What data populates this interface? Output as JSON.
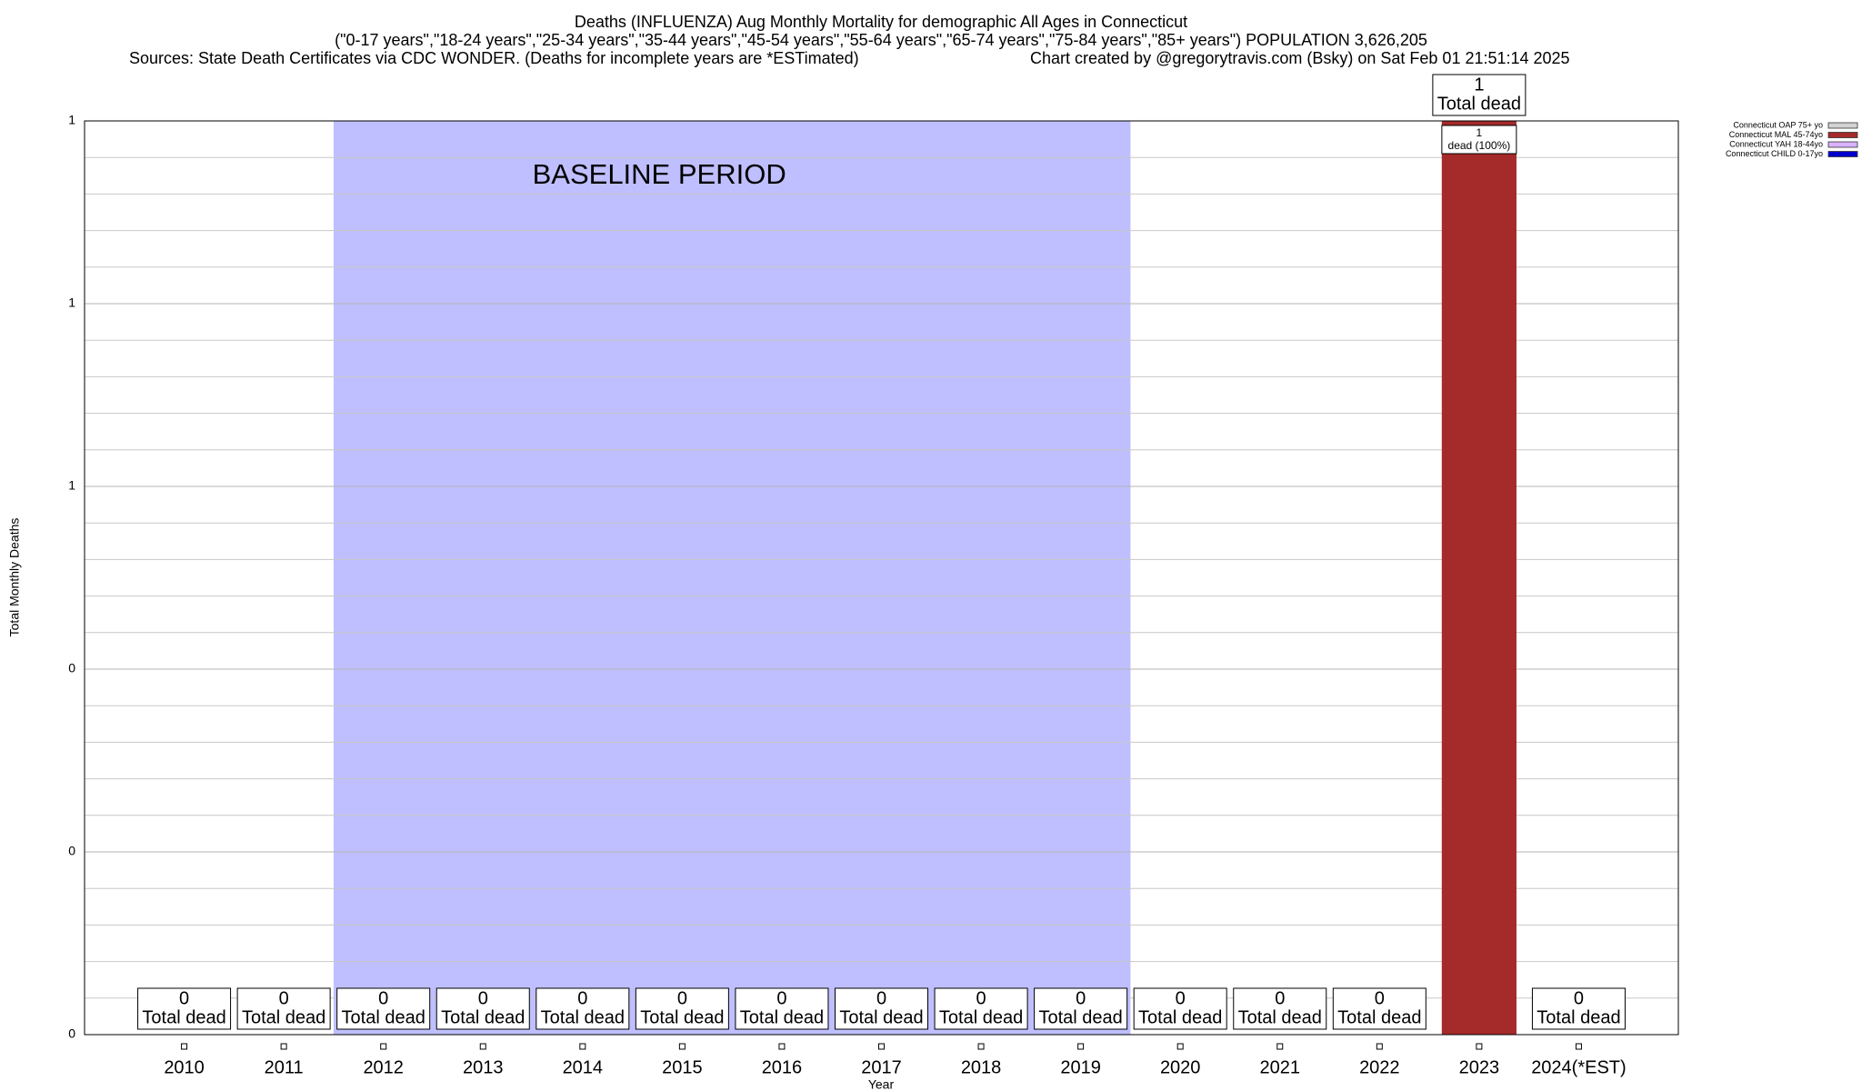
{
  "chart_data": {
    "type": "stacked_bar",
    "title": "Deaths (INFLUENZA) Aug Monthly Mortality for demographic All Ages in Connecticut",
    "subtitle": "(\"0-17 years\",\"18-24 years\",\"25-34 years\",\"35-44 years\",\"45-54 years\",\"55-64 years\",\"65-74 years\",\"75-84 years\",\"85+ years\") POPULATION 3,626,205",
    "sources": "Sources: State Death Certificates via CDC WONDER. (Deaths for incomplete years are *ESTimated)",
    "credit": "Chart created by @gregorytravis.com (Bsky) on Sat Feb 01 21:51:14 2025",
    "x_label": "Year",
    "y_label": "Total Monthly Deaths",
    "categories": [
      "2010",
      "2011",
      "2012",
      "2013",
      "2014",
      "2015",
      "2016",
      "2017",
      "2018",
      "2019",
      "2020",
      "2021",
      "2022",
      "2023",
      "2024(*EST)"
    ],
    "series": [
      {
        "name": "Connecticut OAP 75+ yo",
        "color": "#d3d3d3",
        "values": [
          0,
          0,
          0,
          0,
          0,
          0,
          0,
          0,
          0,
          0,
          0,
          0,
          0,
          0,
          0
        ]
      },
      {
        "name": "Connecticut MAL 45-74yo",
        "color": "#a52a2a",
        "values": [
          0,
          0,
          0,
          0,
          0,
          0,
          0,
          0,
          0,
          0,
          0,
          0,
          0,
          1,
          0
        ],
        "value_labels": [
          null,
          null,
          null,
          null,
          null,
          null,
          null,
          null,
          null,
          null,
          null,
          null,
          null,
          "1 dead (100%)",
          null
        ]
      },
      {
        "name": "Connecticut YAH 18-44yo",
        "color": "#d9b3ff",
        "values": [
          0,
          0,
          0,
          0,
          0,
          0,
          0,
          0,
          0,
          0,
          0,
          0,
          0,
          0,
          0
        ]
      },
      {
        "name": "Connecticut CHILD 0-17yo",
        "color": "#0000cd",
        "values": [
          0,
          0,
          0,
          0,
          0,
          0,
          0,
          0,
          0,
          0,
          0,
          0,
          0,
          0,
          0
        ]
      }
    ],
    "totals": [
      0,
      0,
      0,
      0,
      0,
      0,
      0,
      0,
      0,
      0,
      0,
      0,
      0,
      1,
      0
    ],
    "total_label": "Total dead",
    "baseline": {
      "label": "BASELINE PERIOD",
      "start": "2012",
      "end": "2019",
      "color": "#bfbfff"
    },
    "ylim": [
      0,
      1
    ],
    "yticks": [
      0,
      {
        "value": 0.2,
        "label": "0"
      },
      {
        "value": 0.4,
        "label": "0"
      },
      {
        "value": 0.6,
        "label": "1"
      },
      {
        "value": 0.8,
        "label": "1"
      },
      1
    ],
    "minor_yticks": [
      0.04,
      0.08,
      0.12,
      0.16,
      0.24,
      0.28,
      0.32,
      0.36,
      0.44,
      0.48,
      0.52,
      0.56,
      0.64,
      0.68,
      0.72,
      0.76,
      0.84,
      0.88,
      0.92,
      0.96
    ],
    "grid": true,
    "legend": "top-right"
  }
}
